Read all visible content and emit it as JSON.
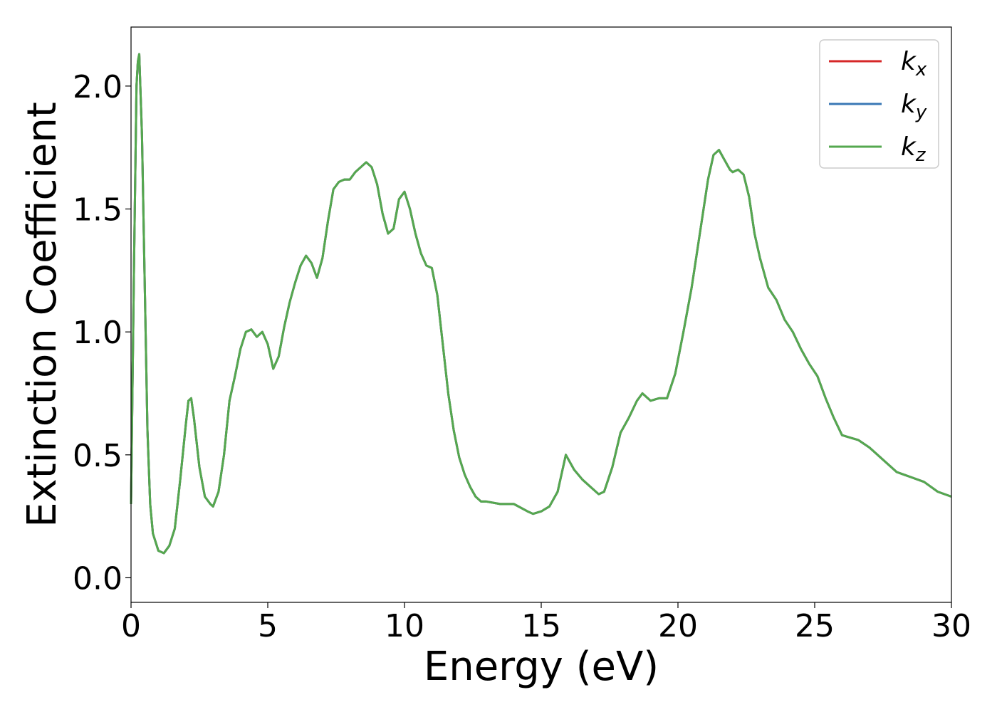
{
  "chart_data": {
    "type": "line",
    "xlabel": "Energy (eV)",
    "ylabel": "Extinction Coefficient",
    "xlim": [
      0,
      30
    ],
    "ylim": [
      -0.1,
      2.24
    ],
    "xticks": [
      0,
      5,
      10,
      15,
      20,
      25,
      30
    ],
    "yticks": [
      0.0,
      0.5,
      1.0,
      1.5,
      2.0
    ],
    "xtick_labels": [
      "0",
      "5",
      "10",
      "15",
      "20",
      "25",
      "30"
    ],
    "ytick_labels": [
      "0.0",
      "0.5",
      "1.0",
      "1.5",
      "2.0"
    ],
    "grid": false,
    "legend_position": "top-right",
    "series": [
      {
        "name": "k",
        "subscript": "x",
        "color": "#d62728"
      },
      {
        "name": "k",
        "subscript": "y",
        "color": "#3a78b5"
      },
      {
        "name": "k",
        "subscript": "z",
        "color": "#55a84f"
      }
    ],
    "x": [
      0,
      0.1,
      0.2,
      0.25,
      0.3,
      0.4,
      0.5,
      0.6,
      0.7,
      0.8,
      1.0,
      1.2,
      1.4,
      1.6,
      1.8,
      2.0,
      2.1,
      2.2,
      2.3,
      2.5,
      2.7,
      2.9,
      3.0,
      3.2,
      3.4,
      3.6,
      3.8,
      4.0,
      4.2,
      4.4,
      4.6,
      4.8,
      5.0,
      5.2,
      5.4,
      5.6,
      5.8,
      6.0,
      6.2,
      6.4,
      6.6,
      6.8,
      7.0,
      7.2,
      7.4,
      7.6,
      7.8,
      8.0,
      8.2,
      8.4,
      8.6,
      8.8,
      9.0,
      9.2,
      9.4,
      9.6,
      9.8,
      10.0,
      10.2,
      10.4,
      10.6,
      10.8,
      11.0,
      11.2,
      11.4,
      11.6,
      11.8,
      12.0,
      12.2,
      12.4,
      12.6,
      12.8,
      13.0,
      13.5,
      14.0,
      14.5,
      14.7,
      15.0,
      15.3,
      15.6,
      15.9,
      16.2,
      16.5,
      16.8,
      17.1,
      17.3,
      17.6,
      17.9,
      18.2,
      18.5,
      18.7,
      19.0,
      19.3,
      19.6,
      19.9,
      20.2,
      20.5,
      20.8,
      21.1,
      21.3,
      21.5,
      21.7,
      21.9,
      22.0,
      22.2,
      22.4,
      22.6,
      22.8,
      23.0,
      23.3,
      23.6,
      23.9,
      24.2,
      24.5,
      24.8,
      25.1,
      25.4,
      25.7,
      26.0,
      26.3,
      26.6,
      27.0,
      27.5,
      28.0,
      28.5,
      29.0,
      29.5,
      30.0
    ],
    "y": [
      0.3,
      1.2,
      2.0,
      2.1,
      2.13,
      1.8,
      1.2,
      0.6,
      0.3,
      0.18,
      0.11,
      0.1,
      0.13,
      0.2,
      0.4,
      0.62,
      0.72,
      0.73,
      0.65,
      0.45,
      0.33,
      0.3,
      0.29,
      0.35,
      0.5,
      0.72,
      0.82,
      0.93,
      1.0,
      1.01,
      0.98,
      1.0,
      0.95,
      0.85,
      0.9,
      1.02,
      1.12,
      1.2,
      1.27,
      1.31,
      1.28,
      1.22,
      1.3,
      1.45,
      1.58,
      1.61,
      1.62,
      1.62,
      1.65,
      1.67,
      1.69,
      1.67,
      1.6,
      1.48,
      1.4,
      1.42,
      1.54,
      1.57,
      1.5,
      1.4,
      1.32,
      1.27,
      1.26,
      1.15,
      0.95,
      0.75,
      0.6,
      0.49,
      0.42,
      0.37,
      0.33,
      0.31,
      0.31,
      0.3,
      0.3,
      0.27,
      0.26,
      0.27,
      0.29,
      0.35,
      0.5,
      0.44,
      0.4,
      0.37,
      0.34,
      0.35,
      0.45,
      0.59,
      0.65,
      0.72,
      0.75,
      0.72,
      0.73,
      0.73,
      0.83,
      1.0,
      1.18,
      1.4,
      1.62,
      1.72,
      1.74,
      1.7,
      1.66,
      1.65,
      1.66,
      1.64,
      1.55,
      1.4,
      1.3,
      1.18,
      1.13,
      1.05,
      1.0,
      0.93,
      0.87,
      0.82,
      0.73,
      0.65,
      0.58,
      0.57,
      0.56,
      0.53,
      0.48,
      0.43,
      0.41,
      0.39,
      0.35,
      0.33
    ]
  }
}
